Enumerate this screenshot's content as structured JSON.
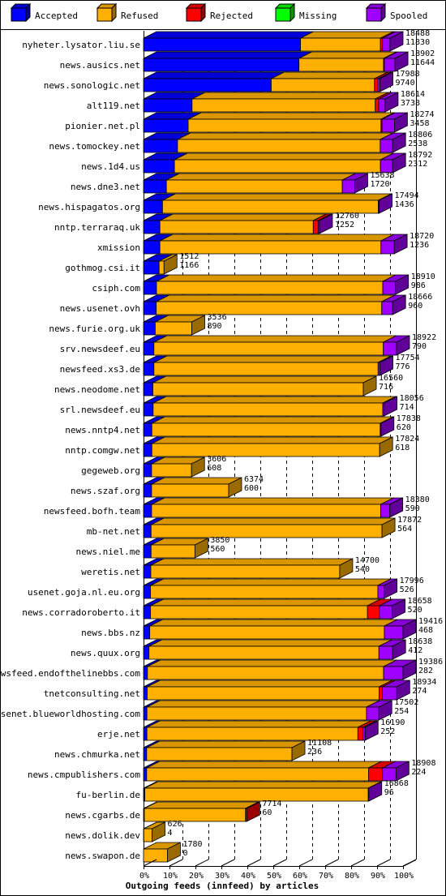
{
  "chart_data": {
    "type": "bar",
    "orientation": "horizontal",
    "stacked": true,
    "xlabel": "Outgoing feeds (innfeed) by articles",
    "xlim": [
      0,
      100
    ],
    "x_unit": "%",
    "x_ticks": [
      "0%",
      "10%",
      "20%",
      "30%",
      "40%",
      "50%",
      "60%",
      "70%",
      "80%",
      "90%",
      "100%"
    ],
    "grid": true,
    "legend_placement": "top",
    "legend": [
      {
        "name": "Accepted",
        "color": "#0000ff"
      },
      {
        "name": "Refused",
        "color": "#ffb000"
      },
      {
        "name": "Rejected",
        "color": "#ff0000"
      },
      {
        "name": "Missing",
        "color": "#00ff00"
      },
      {
        "name": "Spooled",
        "color": "#a000ff"
      }
    ],
    "rows": [
      {
        "host": "nyheter.lysator.liu.se",
        "offered": "18488",
        "accepted": "11830",
        "pct": {
          "accepted": 60.5,
          "refused": 30.8,
          "rejected": 0.8,
          "missing": 0,
          "spooled": 2.9
        }
      },
      {
        "host": "news.ausics.net",
        "offered": "18902",
        "accepted": "11644",
        "pct": {
          "accepted": 59.9,
          "refused": 32.6,
          "rejected": 0.3,
          "missing": 0,
          "spooled": 4.1
        }
      },
      {
        "host": "news.sonologic.net",
        "offered": "17988",
        "accepted": "9740",
        "pct": {
          "accepted": 49.2,
          "refused": 39.8,
          "rejected": 1.3,
          "missing": 0,
          "spooled": 0.8
        }
      },
      {
        "host": "alt119.net",
        "offered": "18614",
        "accepted": "3738",
        "pct": {
          "accepted": 18.7,
          "refused": 70.6,
          "rejected": 1.3,
          "missing": 0,
          "spooled": 2.5
        }
      },
      {
        "host": "pionier.net.pl",
        "offered": "18274",
        "accepted": "3458",
        "pct": {
          "accepted": 17.2,
          "refused": 74.3,
          "rejected": 0.4,
          "missing": 0,
          "spooled": 4.8
        }
      },
      {
        "host": "news.tomockey.net",
        "offered": "18806",
        "accepted": "2538",
        "pct": {
          "accepted": 13.1,
          "refused": 78.1,
          "rejected": 0,
          "missing": 0,
          "spooled": 4.8
        }
      },
      {
        "host": "news.1d4.us",
        "offered": "18792",
        "accepted": "2312",
        "pct": {
          "accepted": 11.9,
          "refused": 79.4,
          "rejected": 0,
          "missing": 0,
          "spooled": 4.7
        }
      },
      {
        "host": "news.dne3.net",
        "offered": "15638",
        "accepted": "1720",
        "pct": {
          "accepted": 8.8,
          "refused": 67.8,
          "rejected": 0,
          "missing": 0,
          "spooled": 4.8
        }
      },
      {
        "host": "news.hispagatos.org",
        "offered": "17494",
        "accepted": "1436",
        "pct": {
          "accepted": 7.3,
          "refused": 83.2,
          "rejected": 0,
          "missing": 0,
          "spooled": 0.3
        }
      },
      {
        "host": "nntp.terraraq.uk",
        "offered": "12760",
        "accepted": "1252",
        "pct": {
          "accepted": 6.3,
          "refused": 59.1,
          "rejected": 1.9,
          "missing": 0,
          "spooled": 0.5
        }
      },
      {
        "host": "xmission",
        "offered": "18720",
        "accepted": "1236",
        "pct": {
          "accepted": 6.3,
          "refused": 85.2,
          "rejected": 0,
          "missing": 0,
          "spooled": 5.1
        }
      },
      {
        "host": "gothmog.csi.it",
        "offered": "1512",
        "accepted": "1166",
        "pct": {
          "accepted": 6.0,
          "refused": 1.9,
          "rejected": 0,
          "missing": 0,
          "spooled": 0
        }
      },
      {
        "host": "csiph.com",
        "offered": "18910",
        "accepted": "986",
        "pct": {
          "accepted": 5.0,
          "refused": 87.2,
          "rejected": 0,
          "missing": 0,
          "spooled": 4.9
        }
      },
      {
        "host": "news.usenet.ovh",
        "offered": "18666",
        "accepted": "960",
        "pct": {
          "accepted": 4.9,
          "refused": 86.9,
          "rejected": 0,
          "missing": 0,
          "spooled": 4.2
        }
      },
      {
        "host": "news.furie.org.uk",
        "offered": "3536",
        "accepted": "890",
        "pct": {
          "accepted": 4.5,
          "refused": 14.1,
          "rejected": 0,
          "missing": 0,
          "spooled": 0
        }
      },
      {
        "host": "srv.newsdeef.eu",
        "offered": "18922",
        "accepted": "790",
        "pct": {
          "accepted": 4.0,
          "refused": 88.4,
          "rejected": 0,
          "missing": 0,
          "spooled": 5.1
        }
      },
      {
        "host": "newsfeed.xs3.de",
        "offered": "17754",
        "accepted": "776",
        "pct": {
          "accepted": 4.0,
          "refused": 86.4,
          "rejected": 0,
          "missing": 0,
          "spooled": 0.7
        }
      },
      {
        "host": "news.neodome.net",
        "offered": "16560",
        "accepted": "716",
        "pct": {
          "accepted": 3.6,
          "refused": 81.1,
          "rejected": 0,
          "missing": 0,
          "spooled": 0
        }
      },
      {
        "host": "srl.newsdeef.eu",
        "offered": "18056",
        "accepted": "714",
        "pct": {
          "accepted": 3.7,
          "refused": 88.5,
          "rejected": 0,
          "missing": 0,
          "spooled": 0.5
        }
      },
      {
        "host": "news.nntp4.net",
        "offered": "17838",
        "accepted": "620",
        "pct": {
          "accepted": 3.2,
          "refused": 88.0,
          "rejected": 0,
          "missing": 0,
          "spooled": 0.3
        }
      },
      {
        "host": "nntp.comgw.net",
        "offered": "17824",
        "accepted": "618",
        "pct": {
          "accepted": 3.2,
          "refused": 87.8,
          "rejected": 0,
          "missing": 0,
          "spooled": 0
        }
      },
      {
        "host": "gegeweb.org",
        "offered": "3606",
        "accepted": "608",
        "pct": {
          "accepted": 3.1,
          "refused": 15.4,
          "rejected": 0,
          "missing": 0,
          "spooled": 0
        }
      },
      {
        "host": "news.szaf.org",
        "offered": "6374",
        "accepted": "600",
        "pct": {
          "accepted": 3.1,
          "refused": 29.7,
          "rejected": 0,
          "missing": 0,
          "spooled": 0
        }
      },
      {
        "host": "newsfeed.bofh.team",
        "offered": "18380",
        "accepted": "590",
        "pct": {
          "accepted": 3.1,
          "refused": 88.3,
          "rejected": 0,
          "missing": 0,
          "spooled": 3.5
        }
      },
      {
        "host": "mb-net.net",
        "offered": "17872",
        "accepted": "564",
        "pct": {
          "accepted": 2.9,
          "refused": 89.0,
          "rejected": 0,
          "missing": 0,
          "spooled": 0
        }
      },
      {
        "host": "news.niel.me",
        "offered": "3850",
        "accepted": "560",
        "pct": {
          "accepted": 2.9,
          "refused": 16.9,
          "rejected": 0,
          "missing": 0,
          "spooled": 0
        }
      },
      {
        "host": "weretis.net",
        "offered": "14700",
        "accepted": "540",
        "pct": {
          "accepted": 2.8,
          "refused": 72.8,
          "rejected": 0,
          "missing": 0,
          "spooled": 0
        }
      },
      {
        "host": "usenet.goja.nl.eu.org",
        "offered": "17996",
        "accepted": "526",
        "pct": {
          "accepted": 2.7,
          "refused": 87.6,
          "rejected": 0,
          "missing": 0,
          "spooled": 2.4
        }
      },
      {
        "host": "news.corradoroberto.it",
        "offered": "18658",
        "accepted": "520",
        "pct": {
          "accepted": 2.7,
          "refused": 83.6,
          "rejected": 4.6,
          "missing": 0,
          "spooled": 4.9
        }
      },
      {
        "host": "news.bbs.nz",
        "offered": "19416",
        "accepted": "468",
        "pct": {
          "accepted": 2.4,
          "refused": 90.4,
          "rejected": 0,
          "missing": 0,
          "spooled": 7.2
        }
      },
      {
        "host": "news.quux.org",
        "offered": "18638",
        "accepted": "412",
        "pct": {
          "accepted": 2.1,
          "refused": 88.6,
          "rejected": 0,
          "missing": 0,
          "spooled": 5.3
        }
      },
      {
        "host": "newsfeed.endofthelinebbs.com",
        "offered": "19386",
        "accepted": "282",
        "pct": {
          "accepted": 1.5,
          "refused": 91.0,
          "rejected": 0,
          "missing": 0,
          "spooled": 7.5
        }
      },
      {
        "host": "tnetconsulting.net",
        "offered": "18934",
        "accepted": "274",
        "pct": {
          "accepted": 1.4,
          "refused": 89.4,
          "rejected": 1.2,
          "missing": 0,
          "spooled": 5.6
        }
      },
      {
        "host": "usenet.blueworldhosting.com",
        "offered": "17502",
        "accepted": "254",
        "pct": {
          "accepted": 1.3,
          "refused": 84.6,
          "rejected": 0,
          "missing": 0,
          "spooled": 4.8
        }
      },
      {
        "host": "erje.net",
        "offered": "16190",
        "accepted": "252",
        "pct": {
          "accepted": 1.3,
          "refused": 81.3,
          "rejected": 2.0,
          "missing": 0,
          "spooled": 0.8
        }
      },
      {
        "host": "news.chmurka.net",
        "offered": "11108",
        "accepted": "236",
        "pct": {
          "accepted": 1.2,
          "refused": 56.0,
          "rejected": 0,
          "missing": 0,
          "spooled": 0
        }
      },
      {
        "host": "news.cmpublishers.com",
        "offered": "18908",
        "accepted": "224",
        "pct": {
          "accepted": 1.2,
          "refused": 85.5,
          "rejected": 5.4,
          "missing": 0,
          "spooled": 5.2
        }
      },
      {
        "host": "fu-berlin.de",
        "offered": "16868",
        "accepted": "96",
        "pct": {
          "accepted": 0.5,
          "refused": 86.1,
          "rejected": 0,
          "missing": 0,
          "spooled": 0.2
        }
      },
      {
        "host": "news.cgarbs.de",
        "offered": "7714",
        "accepted": "60",
        "pct": {
          "accepted": 0.3,
          "refused": 39.0,
          "rejected": 0.5,
          "missing": 0,
          "spooled": 0
        }
      },
      {
        "host": "news.dolik.dev",
        "offered": "626",
        "accepted": "4",
        "pct": {
          "accepted": 0.1,
          "refused": 3.2,
          "rejected": 0,
          "missing": 0,
          "spooled": 0
        }
      },
      {
        "host": "news.swapon.de",
        "offered": "1780",
        "accepted": "0",
        "pct": {
          "accepted": 0,
          "refused": 9.2,
          "rejected": 0,
          "missing": 0,
          "spooled": 0
        }
      }
    ]
  }
}
